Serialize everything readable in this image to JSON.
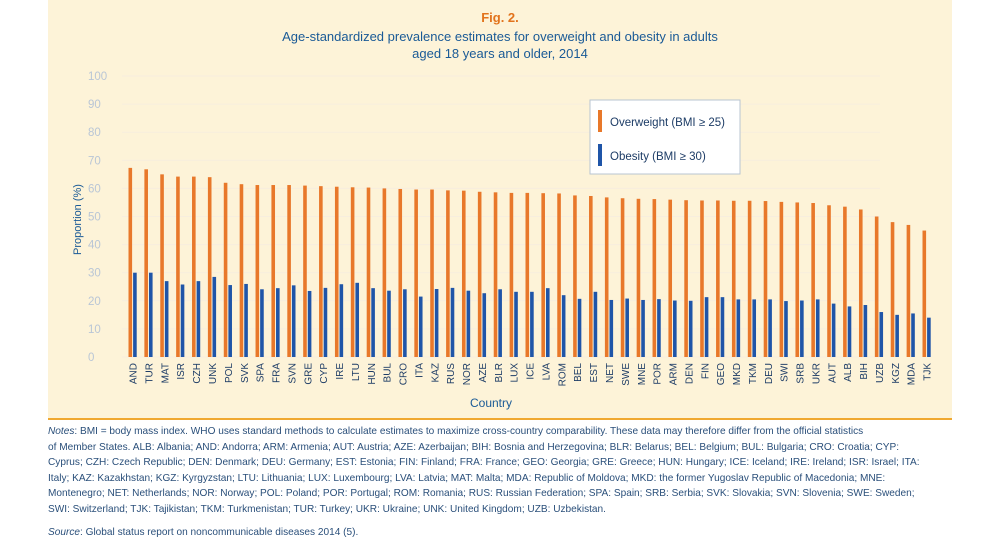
{
  "figure": {
    "label": "Fig. 2.",
    "title_line1": "Age-standardized prevalence estimates for overweight and obesity in adults",
    "title_line2": "aged 18 years and older, 2014"
  },
  "chart_data": {
    "type": "bar",
    "xlabel": "Country",
    "ylabel": "Proportion (%)",
    "ylim": [
      0,
      100
    ],
    "yticks": [
      0,
      10,
      20,
      30,
      40,
      50,
      60,
      70,
      80,
      90,
      100
    ],
    "grid": true,
    "legend_position": "top-right",
    "categories": [
      "AND",
      "TUR",
      "MAT",
      "ISR",
      "CZH",
      "UNK",
      "POL",
      "SVK",
      "SPA",
      "FRA",
      "SVN",
      "GRE",
      "CYP",
      "IRE",
      "LTU",
      "HUN",
      "BUL",
      "CRO",
      "ITA",
      "KAZ",
      "RUS",
      "NOR",
      "AZE",
      "BLR",
      "LUX",
      "ICE",
      "LVA",
      "ROM",
      "BEL",
      "EST",
      "NET",
      "SWE",
      "MNE",
      "POR",
      "ARM",
      "DEN",
      "FIN",
      "GEO",
      "MKD",
      "TKM",
      "DEU",
      "SWI",
      "SRB",
      "UKR",
      "AUT",
      "ALB",
      "BIH",
      "UZB",
      "KGZ",
      "MDA",
      "TJK"
    ],
    "series": [
      {
        "name": "Overweight (BMI ≥ 25)",
        "color": "#e8782a",
        "values": [
          67.3,
          66.8,
          65.0,
          64.2,
          64.2,
          64.0,
          62.0,
          61.5,
          61.2,
          61.2,
          61.2,
          61.0,
          60.8,
          60.6,
          60.4,
          60.3,
          60.0,
          59.8,
          59.6,
          59.6,
          59.3,
          59.2,
          58.8,
          58.6,
          58.4,
          58.4,
          58.3,
          58.2,
          57.5,
          57.3,
          56.8,
          56.5,
          56.3,
          56.2,
          56.0,
          55.8,
          55.7,
          55.7,
          55.6,
          55.6,
          55.5,
          55.2,
          55.0,
          54.8,
          54.0,
          53.5,
          52.5,
          50.0,
          48.0,
          47.0,
          45.0
        ]
      },
      {
        "name": "Obesity (BMI ≥ 30)",
        "color": "#1f55a8",
        "values": [
          30.0,
          30.0,
          27.0,
          25.8,
          27.0,
          28.5,
          25.6,
          26.0,
          24.1,
          24.5,
          25.5,
          23.5,
          24.6,
          25.9,
          26.4,
          24.5,
          23.6,
          24.1,
          21.5,
          24.2,
          24.6,
          23.6,
          22.7,
          24.1,
          23.2,
          23.2,
          24.5,
          22.0,
          20.7,
          23.2,
          20.3,
          20.8,
          20.3,
          20.6,
          20.1,
          20.0,
          21.3,
          21.3,
          20.5,
          20.5,
          20.5,
          19.9,
          20.1,
          20.5,
          19.0,
          18.0,
          18.5,
          16.0,
          15.0,
          15.5,
          14.0
        ]
      }
    ]
  },
  "notes": {
    "label": "Notes",
    "lines": [
      ": BMI = body mass index. WHO uses standard methods to calculate estimates to maximize cross-country comparability. These data may therefore differ from the official statistics",
      "of Member States. ALB: Albania; AND: Andorra; ARM: Armenia; AUT: Austria; AZE: Azerbaijan; BIH: Bosnia and Herzegovina; BLR: Belarus; BEL: Belgium; BUL: Bulgaria; CRO: Croatia; CYP:",
      "Cyprus; CZH: Czech Republic; DEN: Denmark; DEU: Germany; EST: Estonia; FIN: Finland; FRA: France; GEO: Georgia; GRE: Greece; HUN: Hungary; ICE: Iceland; IRE: Ireland; ISR: Israel; ITA:",
      "Italy; KAZ: Kazakhstan; KGZ: Kyrgyzstan; LTU: Lithuania; LUX: Luxembourg; LVA: Latvia; MAT: Malta; MDA: Republic of Moldova; MKD: the former Yugoslav Republic of Macedonia; MNE:",
      "Montenegro; NET: Netherlands; NOR: Norway; POL: Poland; POR: Portugal; ROM: Romania; RUS: Russian Federation; SPA: Spain; SRB: Serbia; SVK: Slovakia; SVN: Slovenia; SWE: Sweden;",
      "SWI: Switzerland; TJK: Tajikistan; TKM: Turkmenistan; TUR: Turkey; UKR: Ukraine; UNK: United Kingdom; UZB: Uzbekistan."
    ]
  },
  "source": {
    "label": "Source",
    "text": ": Global status report on noncommunicable diseases 2014 (5)."
  }
}
